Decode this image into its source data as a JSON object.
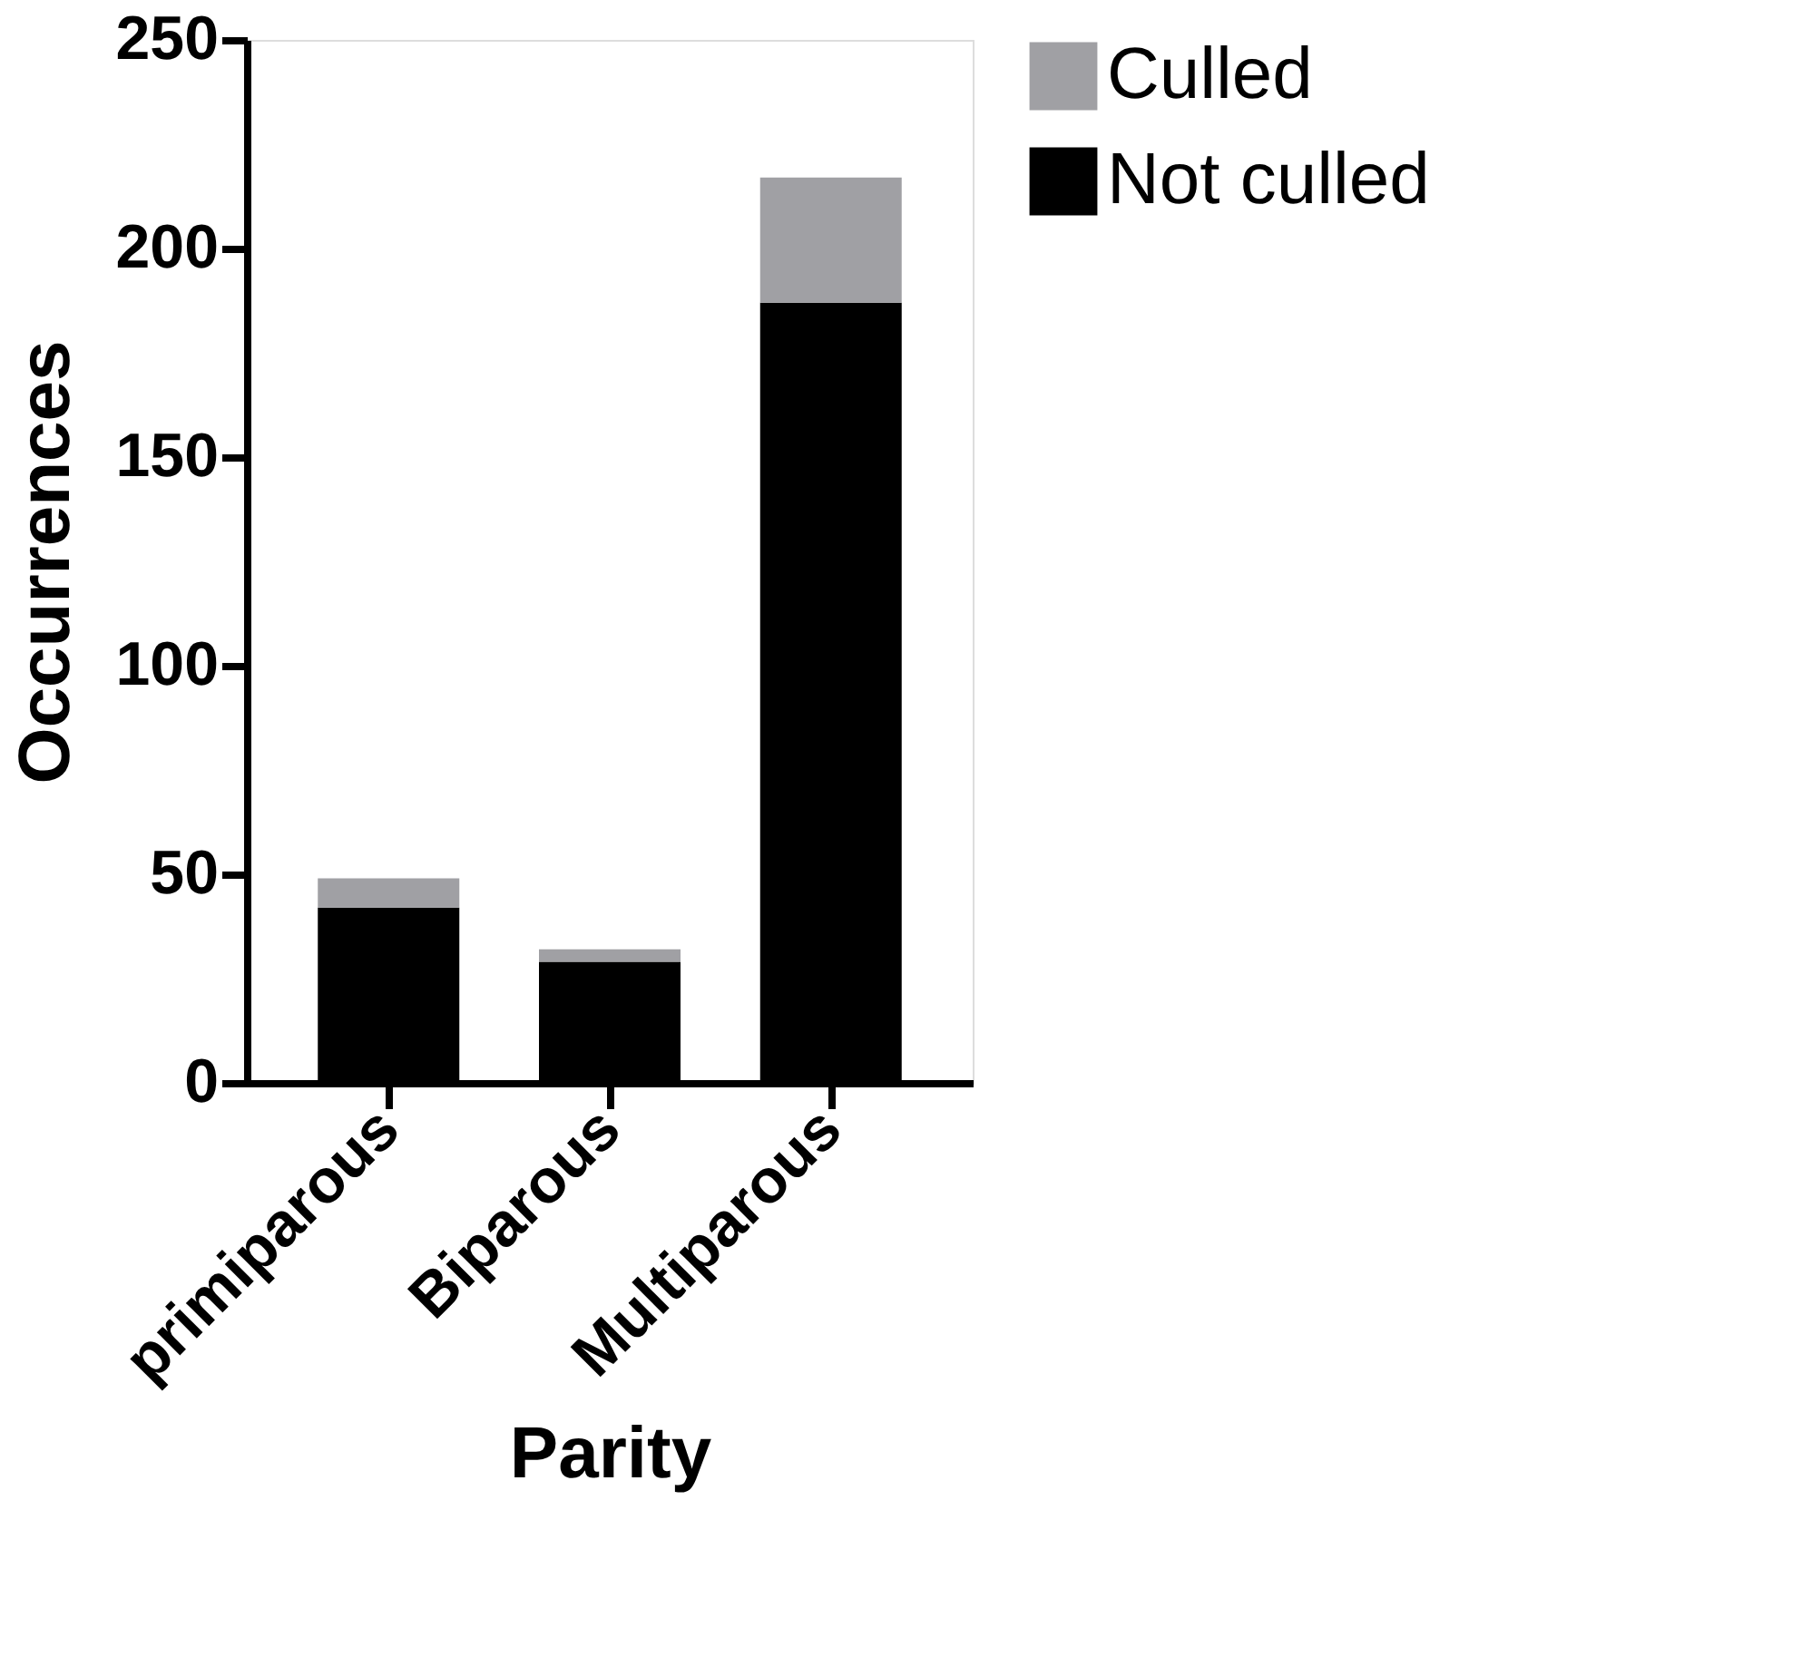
{
  "chart_data": {
    "type": "bar",
    "stacked": true,
    "xlabel": "Parity",
    "ylabel": "Occurrences",
    "categories": [
      "primiparous",
      "Biparous",
      "Multiparous"
    ],
    "series": [
      {
        "name": "Not culled",
        "color": "#000000",
        "values": [
          42,
          29,
          187
        ]
      },
      {
        "name": "Culled",
        "color": "#a0a0a4",
        "values": [
          7,
          3,
          30
        ]
      }
    ],
    "ylim": [
      0,
      250
    ],
    "yticks": [
      0,
      50,
      100,
      150,
      200,
      250
    ],
    "grid": false,
    "legend": "top right"
  }
}
